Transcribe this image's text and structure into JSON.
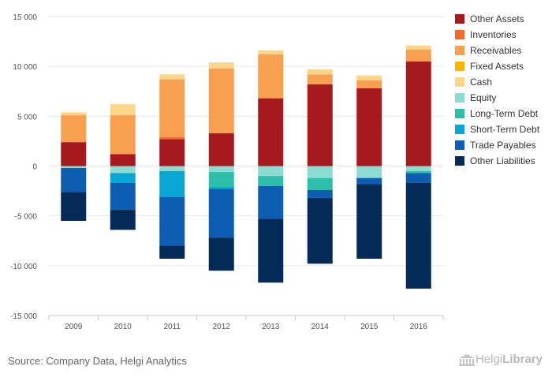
{
  "chart_data": {
    "type": "bar",
    "stacked": true,
    "categories": [
      "2009",
      "2010",
      "2011",
      "2012",
      "2013",
      "2014",
      "2015",
      "2016"
    ],
    "ylim": [
      -15000,
      15000
    ],
    "yticks": [
      15000,
      10000,
      5000,
      0,
      -5000,
      -10000,
      -15000
    ],
    "ytick_labels": [
      "15 000",
      "10 000",
      "5 000",
      "0",
      "-5 000",
      "-10 000",
      "-15 000"
    ],
    "grid": true,
    "legend_position": "right",
    "series": [
      {
        "name": "Other Assets",
        "color": "#a6191e",
        "values": [
          2400,
          1200,
          2700,
          3300,
          6800,
          8200,
          7800,
          10500
        ]
      },
      {
        "name": "Inventories",
        "color": "#f26b2b",
        "values": [
          0,
          0,
          200,
          0,
          0,
          0,
          0,
          0
        ]
      },
      {
        "name": "Receivables",
        "color": "#f9a050",
        "values": [
          2700,
          3900,
          5800,
          6500,
          4400,
          1000,
          800,
          1200
        ]
      },
      {
        "name": "Fixed Assets",
        "color": "#f7b500",
        "values": [
          0,
          0,
          0,
          0,
          0,
          0,
          0,
          0
        ]
      },
      {
        "name": "Cash",
        "color": "#fbd68a",
        "values": [
          300,
          1100,
          500,
          600,
          400,
          500,
          500,
          400
        ]
      },
      {
        "name": "Equity",
        "color": "#8ddcd4",
        "values": [
          -200,
          -700,
          -500,
          -600,
          -1000,
          -1200,
          -1200,
          -500
        ]
      },
      {
        "name": "Long-Term Debt",
        "color": "#2ebfaa",
        "values": [
          0,
          0,
          0,
          -1500,
          -1000,
          -1200,
          0,
          -200
        ]
      },
      {
        "name": "Short-Term Debt",
        "color": "#0aa6d4",
        "values": [
          0,
          -1000,
          -2600,
          -200,
          0,
          0,
          0,
          0
        ]
      },
      {
        "name": "Trade Payables",
        "color": "#0d5eb3",
        "values": [
          -2400,
          -2700,
          -4900,
          -4900,
          -3300,
          -800,
          -600,
          -1000
        ]
      },
      {
        "name": "Other Liabilities",
        "color": "#042b57",
        "values": [
          -2900,
          -2000,
          -1300,
          -3300,
          -6400,
          -6600,
          -7500,
          -10600
        ]
      }
    ]
  },
  "footer": {
    "source": "Source: Company Data, Helgi Analytics"
  },
  "logo": {
    "text_regular": "Helgi",
    "text_bold": "Library"
  }
}
